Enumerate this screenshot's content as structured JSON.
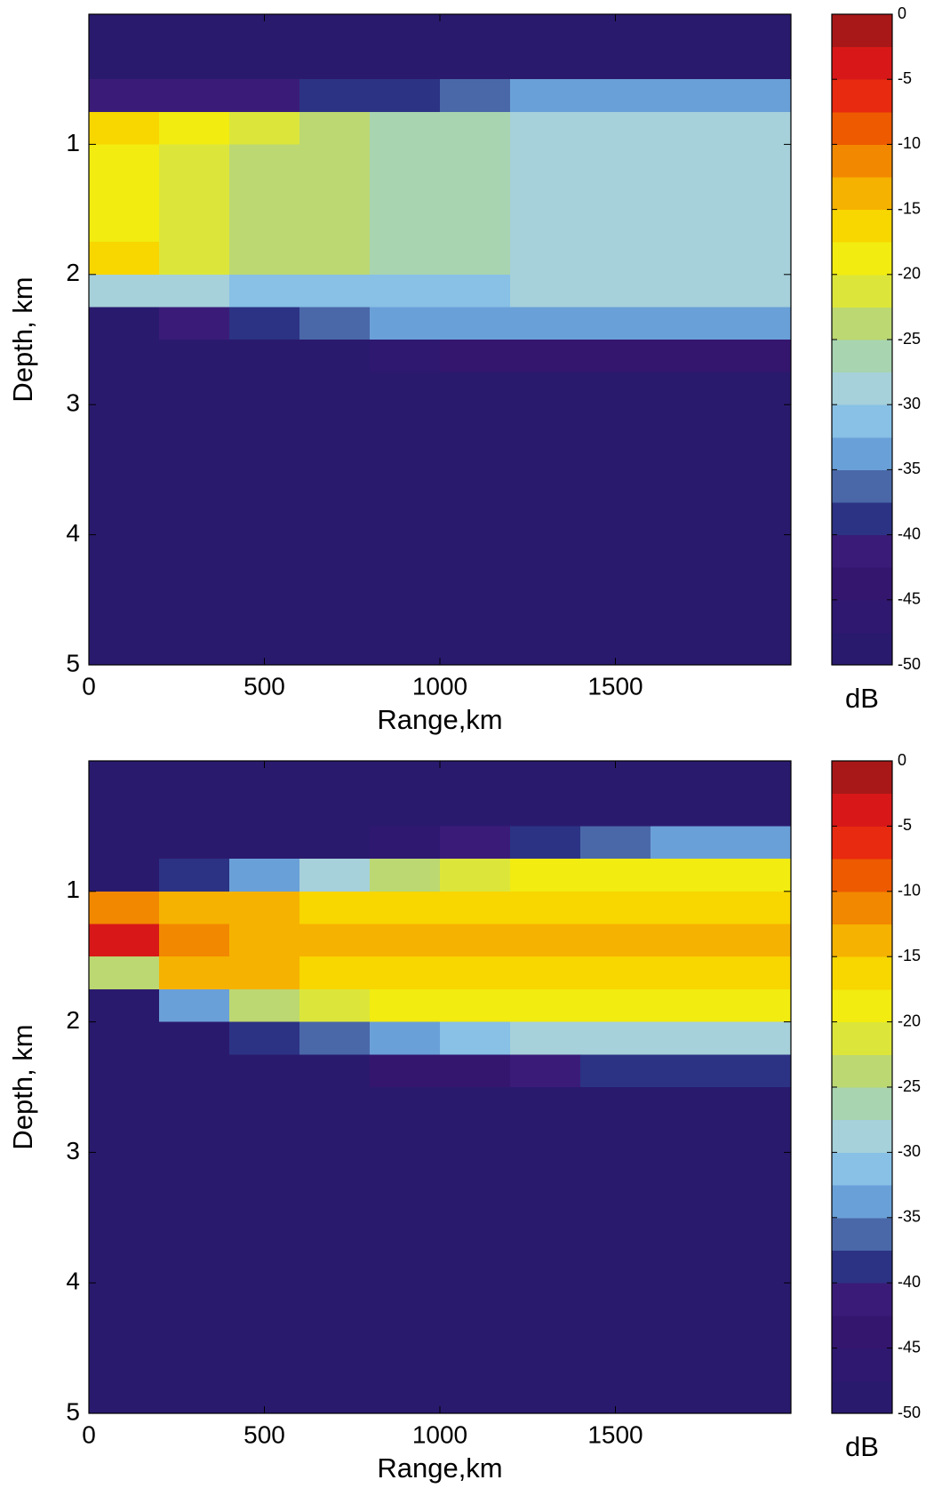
{
  "chart_data": [
    {
      "type": "heatmap",
      "xlabel": "Range,km",
      "ylabel": "Depth, km",
      "colorbar_label": "dB",
      "xlim": [
        0,
        2000
      ],
      "xticks": [
        0,
        500,
        1000,
        1500
      ],
      "ylim": [
        0,
        5
      ],
      "yticks": [
        1,
        2,
        3,
        4,
        5
      ],
      "y_reversed": true,
      "clim": [
        -50,
        0
      ],
      "cticks": [
        0,
        -5,
        -10,
        -15,
        -20,
        -25,
        -30,
        -35,
        -40,
        -45,
        -50
      ],
      "colormap": [
        "#2a1a6e",
        "#2e1870",
        "#34166f",
        "#3a1c78",
        "#2c3384",
        "#4a68a8",
        "#6aa0d8",
        "#88c0e6",
        "#a6d0da",
        "#a8d4b0",
        "#bcd872",
        "#dce63a",
        "#f2ec10",
        "#f8d600",
        "#f6b200",
        "#f28800",
        "#ee5a00",
        "#e82a10",
        "#d81818",
        "#a81818"
      ],
      "x_bins": [
        0,
        200,
        400,
        600,
        800,
        1000,
        1200,
        1400,
        1600,
        1800,
        2000
      ],
      "y_bins": [
        0,
        0.25,
        0.5,
        0.75,
        1,
        1.25,
        1.5,
        1.75,
        2,
        2.25,
        2.5,
        2.75,
        3,
        3.25,
        3.5,
        3.75,
        4,
        4.25,
        4.5,
        4.75,
        5
      ],
      "z": [
        [
          -50,
          -50,
          -50,
          -50,
          -50,
          -50,
          -50,
          -50,
          -50,
          -50
        ],
        [
          -50,
          -50,
          -50,
          -50,
          -50,
          -50,
          -50,
          -50,
          -50,
          -50
        ],
        [
          -42,
          -42,
          -42,
          -40,
          -38,
          -36,
          -35,
          -34,
          -33,
          -33
        ],
        [
          -16,
          -20,
          -22,
          -24,
          -26,
          -27,
          -28,
          -29,
          -29,
          -29
        ],
        [
          -18,
          -21,
          -23,
          -25,
          -26,
          -27,
          -28,
          -28,
          -28,
          -28
        ],
        [
          -18,
          -21,
          -23,
          -25,
          -26,
          -27,
          -28,
          -28,
          -28,
          -28
        ],
        [
          -18,
          -21,
          -23,
          -25,
          -26,
          -27,
          -28,
          -28,
          -28,
          -28
        ],
        [
          -17,
          -21,
          -23,
          -25,
          -26,
          -27,
          -28,
          -28,
          -28,
          -28
        ],
        [
          -30,
          -30,
          -31,
          -32,
          -32,
          -31,
          -30,
          -30,
          -30,
          -30
        ],
        [
          -50,
          -42,
          -38,
          -36,
          -35,
          -35,
          -34,
          -34,
          -34,
          -34
        ],
        [
          -50,
          -50,
          -50,
          -48,
          -46,
          -45,
          -44,
          -44,
          -44,
          -44
        ],
        [
          -50,
          -50,
          -50,
          -50,
          -50,
          -50,
          -50,
          -50,
          -50,
          -50
        ],
        [
          -50,
          -50,
          -50,
          -50,
          -50,
          -50,
          -50,
          -50,
          -50,
          -50
        ],
        [
          -50,
          -50,
          -50,
          -50,
          -50,
          -50,
          -50,
          -50,
          -50,
          -50
        ],
        [
          -50,
          -50,
          -50,
          -50,
          -50,
          -50,
          -50,
          -50,
          -50,
          -50
        ],
        [
          -50,
          -50,
          -50,
          -50,
          -50,
          -50,
          -50,
          -50,
          -50,
          -50
        ],
        [
          -50,
          -50,
          -50,
          -50,
          -50,
          -50,
          -50,
          -50,
          -50,
          -50
        ],
        [
          -50,
          -50,
          -50,
          -50,
          -50,
          -50,
          -50,
          -50,
          -50,
          -50
        ],
        [
          -50,
          -50,
          -50,
          -50,
          -50,
          -50,
          -50,
          -50,
          -50,
          -50
        ],
        [
          -50,
          -50,
          -50,
          -50,
          -50,
          -50,
          -50,
          -50,
          -50,
          -50
        ]
      ]
    },
    {
      "type": "heatmap",
      "xlabel": "Range,km",
      "ylabel": "Depth, km",
      "colorbar_label": "dB",
      "xlim": [
        0,
        2000
      ],
      "xticks": [
        0,
        500,
        1000,
        1500
      ],
      "ylim": [
        0,
        5
      ],
      "yticks": [
        1,
        2,
        3,
        4,
        5
      ],
      "y_reversed": true,
      "clim": [
        -50,
        0
      ],
      "cticks": [
        0,
        -5,
        -10,
        -15,
        -20,
        -25,
        -30,
        -35,
        -40,
        -45,
        -50
      ],
      "colormap": [
        "#2a1a6e",
        "#2e1870",
        "#34166f",
        "#3a1c78",
        "#2c3384",
        "#4a68a8",
        "#6aa0d8",
        "#88c0e6",
        "#a6d0da",
        "#a8d4b0",
        "#bcd872",
        "#dce63a",
        "#f2ec10",
        "#f8d600",
        "#f6b200",
        "#f28800",
        "#ee5a00",
        "#e82a10",
        "#d81818",
        "#a81818"
      ],
      "x_bins": [
        0,
        200,
        400,
        600,
        800,
        1000,
        1200,
        1400,
        1600,
        1800,
        2000
      ],
      "y_bins": [
        0,
        0.25,
        0.5,
        0.75,
        1,
        1.25,
        1.5,
        1.75,
        2,
        2.25,
        2.5,
        2.75,
        3,
        3.25,
        3.5,
        3.75,
        4,
        4.25,
        4.5,
        4.75,
        5
      ],
      "z": [
        [
          -50,
          -50,
          -50,
          -50,
          -50,
          -50,
          -50,
          -50,
          -50,
          -50
        ],
        [
          -50,
          -50,
          -50,
          -50,
          -50,
          -50,
          -50,
          -50,
          -50,
          -50
        ],
        [
          -50,
          -50,
          -50,
          -50,
          -46,
          -42,
          -38,
          -36,
          -35,
          -34
        ],
        [
          -50,
          -40,
          -34,
          -30,
          -25,
          -22,
          -20,
          -19,
          -19,
          -19
        ],
        [
          -12,
          -14,
          -15,
          -16,
          -16,
          -16,
          -17,
          -17,
          -17,
          -17
        ],
        [
          -5,
          -11,
          -13,
          -14,
          -15,
          -15,
          -15,
          -15,
          -15,
          -15
        ],
        [
          -25,
          -15,
          -15,
          -16,
          -16,
          -16,
          -17,
          -17,
          -17,
          -17
        ],
        [
          -50,
          -34,
          -25,
          -21,
          -20,
          -19,
          -19,
          -19,
          -19,
          -19
        ],
        [
          -50,
          -50,
          -40,
          -36,
          -33,
          -31,
          -30,
          -30,
          -30,
          -30
        ],
        [
          -50,
          -50,
          -50,
          -48,
          -45,
          -43,
          -42,
          -40,
          -40,
          -40
        ],
        [
          -50,
          -50,
          -50,
          -50,
          -50,
          -50,
          -50,
          -50,
          -50,
          -50
        ],
        [
          -50,
          -50,
          -50,
          -50,
          -50,
          -50,
          -50,
          -50,
          -50,
          -50
        ],
        [
          -50,
          -50,
          -50,
          -50,
          -50,
          -50,
          -50,
          -50,
          -50,
          -50
        ],
        [
          -50,
          -50,
          -50,
          -50,
          -50,
          -50,
          -50,
          -50,
          -50,
          -50
        ],
        [
          -50,
          -50,
          -50,
          -50,
          -50,
          -50,
          -50,
          -50,
          -50,
          -50
        ],
        [
          -50,
          -50,
          -50,
          -50,
          -50,
          -50,
          -50,
          -50,
          -50,
          -50
        ],
        [
          -50,
          -50,
          -50,
          -50,
          -50,
          -50,
          -50,
          -50,
          -50,
          -50
        ],
        [
          -50,
          -50,
          -50,
          -50,
          -50,
          -50,
          -50,
          -50,
          -50,
          -50
        ],
        [
          -50,
          -50,
          -50,
          -50,
          -50,
          -50,
          -50,
          -50,
          -50,
          -50
        ],
        [
          -50,
          -50,
          -50,
          -50,
          -50,
          -50,
          -50,
          -50,
          -50,
          -50
        ]
      ]
    }
  ]
}
